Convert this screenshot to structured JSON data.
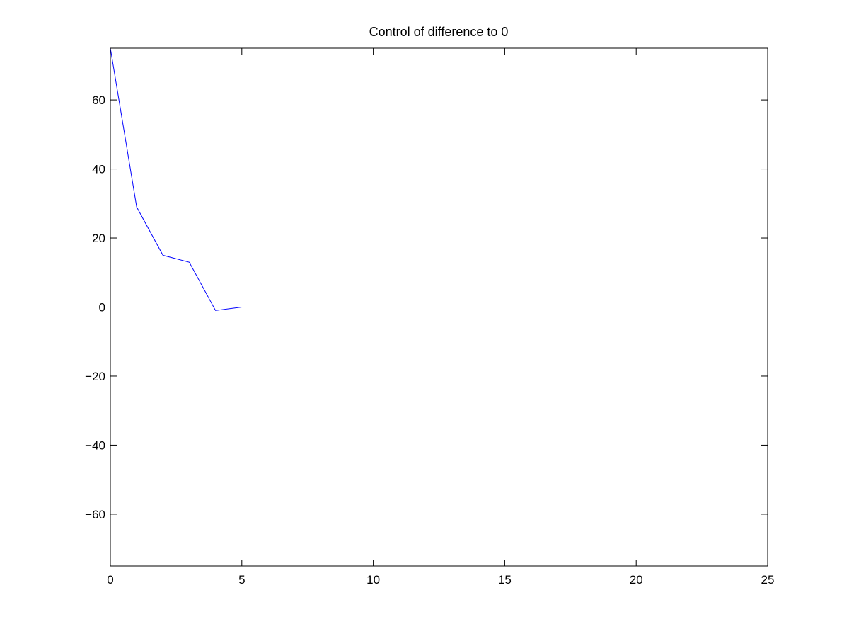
{
  "chart_data": {
    "type": "line",
    "title": "Control of difference to 0",
    "xlabel": "",
    "ylabel": "",
    "xlim": [
      0,
      25
    ],
    "ylim": [
      -75,
      75
    ],
    "x_ticks": [
      0,
      5,
      10,
      15,
      20,
      25
    ],
    "y_ticks": [
      -60,
      -40,
      -20,
      0,
      20,
      40,
      60
    ],
    "x_tick_labels": [
      "0",
      "5",
      "10",
      "15",
      "20",
      "25"
    ],
    "y_tick_labels": [
      "−60",
      "−40",
      "−20",
      "0",
      "20",
      "40",
      "60"
    ],
    "grid": false,
    "legend": "none",
    "series": [
      {
        "color": "#0000ff",
        "x": [
          0,
          1,
          2,
          3,
          4,
          5,
          6,
          7,
          8,
          9,
          10,
          11,
          12,
          13,
          14,
          15,
          16,
          17,
          18,
          19,
          20,
          21,
          22,
          23,
          24,
          25
        ],
        "y": [
          75,
          29,
          15,
          13,
          -1,
          0,
          0,
          0,
          0,
          0,
          0,
          0,
          0,
          0,
          0,
          0,
          0,
          0,
          0,
          0,
          0,
          0,
          0,
          0,
          0,
          0
        ]
      }
    ]
  }
}
